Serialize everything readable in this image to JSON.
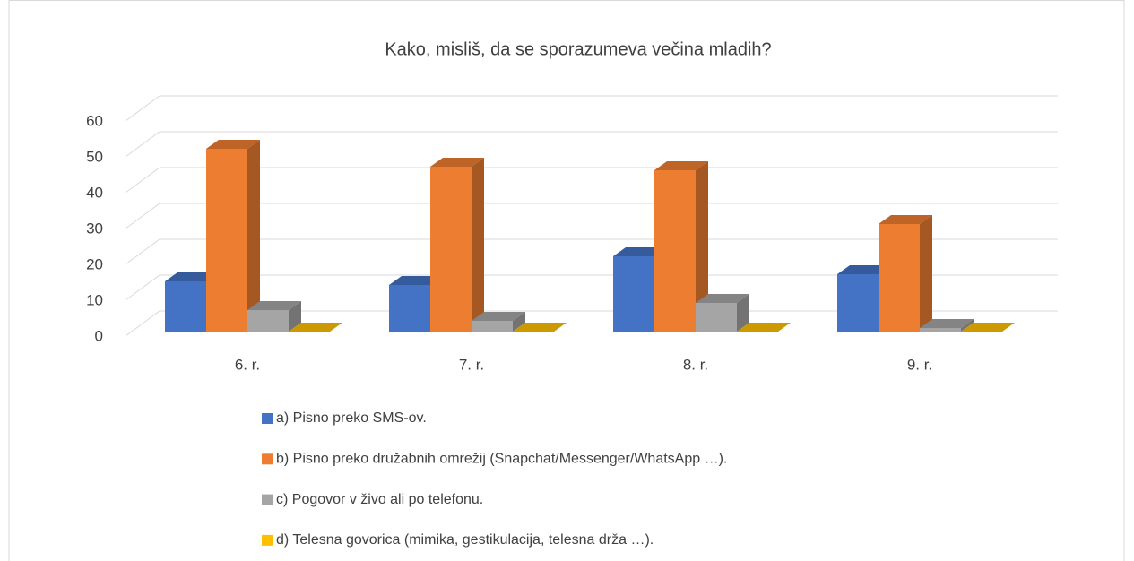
{
  "chart_data": {
    "type": "bar3d",
    "title": "Kako, misliš, da se sporazumeva večina mladih?",
    "categories": [
      "6. r.",
      "7. r.",
      "8. r.",
      "9. r."
    ],
    "series": [
      {
        "name": "a) Pisno preko SMS-ov.",
        "color": "#4472c4",
        "values": [
          14,
          13,
          21,
          16
        ]
      },
      {
        "name": "b) Pisno preko družabnih omrežij (Snapchat/Messenger/WhatsApp …).",
        "color": "#ed7d31",
        "values": [
          51,
          46,
          45,
          30
        ]
      },
      {
        "name": "c) Pogovor v živo ali po telefonu.",
        "color": "#a5a5a5",
        "values": [
          6,
          3,
          8,
          1
        ]
      },
      {
        "name": "d) Telesna govorica (mimika, gestikulacija, telesna drža …).",
        "color": "#ffc000",
        "values": [
          0,
          0,
          0,
          0
        ]
      }
    ],
    "ylim": [
      0,
      60
    ],
    "yticks": [
      0,
      10,
      20,
      30,
      40,
      50,
      60
    ],
    "grid": true,
    "legend": "bottom"
  }
}
